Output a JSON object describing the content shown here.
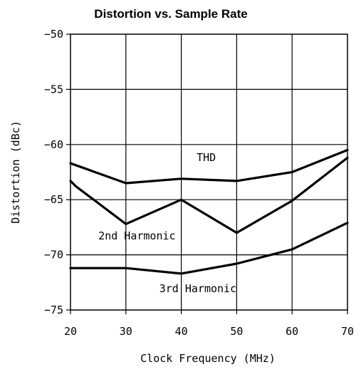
{
  "chart_data": {
    "type": "line",
    "title": "Distortion vs. Sample Rate",
    "xlabel": "Clock Frequency (MHz)",
    "ylabel": "Distortion (dBc)",
    "xlim": [
      20,
      70
    ],
    "ylim": [
      -75,
      -50
    ],
    "x_ticks": [
      20,
      30,
      40,
      50,
      60,
      70
    ],
    "y_ticks": [
      -75,
      -70,
      -65,
      -60,
      -55,
      -50
    ],
    "grid": true,
    "legend": "none",
    "series": [
      {
        "name": "THD",
        "x": [
          20,
          30,
          40,
          50,
          60,
          70
        ],
        "y": [
          -61.7,
          -63.5,
          -63.1,
          -63.3,
          -62.5,
          -60.5
        ]
      },
      {
        "name": "2nd Harmonic",
        "x": [
          20,
          21,
          30,
          40,
          50,
          60,
          70
        ],
        "y": [
          -63.3,
          -63.8,
          -67.2,
          -65.0,
          -68.0,
          -65.1,
          -61.2
        ]
      },
      {
        "name": "3rd Harmonic",
        "x": [
          20,
          30,
          40,
          50,
          60,
          70
        ],
        "y": [
          -71.2,
          -71.2,
          -71.7,
          -70.8,
          -69.5,
          -67.1
        ]
      }
    ]
  }
}
